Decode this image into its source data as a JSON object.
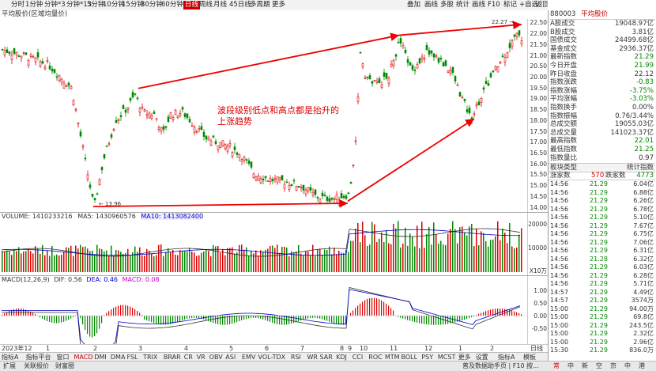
{
  "toolbar": {
    "items": [
      "分时",
      "1分钟",
      "分钟*3",
      "分钟*13",
      "5分钟",
      "10分钟",
      "15分钟",
      "30分钟",
      "60分钟",
      "日线",
      "周线",
      "月线",
      "45日线",
      "多周期",
      "更多"
    ],
    "active_index": 9,
    "right_items": [
      "叠加",
      "画线",
      "多股",
      "统计",
      "画线",
      "F10",
      "标记",
      "+自选",
      "返回"
    ]
  },
  "subtitle": "平均股价(区域均量价)",
  "annotation": {
    "line1": "波段级别低点和高点都是抬升的",
    "line2": "上涨趋势"
  },
  "price_axis": [
    "22.50",
    "22.00",
    "21.50",
    "21.00",
    "20.50",
    "20.00",
    "19.50",
    "19.00",
    "18.50",
    "18.00",
    "17.50",
    "17.00",
    "16.50",
    "16.00",
    "15.50",
    "15.00",
    "14.50",
    "14.00"
  ],
  "markers": {
    "low_label": "← 13.96",
    "high_label": "22.27 →"
  },
  "volume_legend": {
    "name": "VOLUME: 1410233216",
    "ma5": "MA5: 1430960576",
    "ma10": "MA10: 1413082400"
  },
  "volume_axis": [
    "20000",
    "10000",
    "X10万"
  ],
  "macd_legend": {
    "name": "MACD(12,26,9)",
    "dif": "DIF: 0.56",
    "dea": "DEA: 0.46",
    "macd": "MACD: 0.08"
  },
  "macd_axis": [
    "1.00",
    "0.50",
    "0.00",
    "-0.50"
  ],
  "dates": [
    "2023年12",
    "1",
    "2",
    "3",
    "4",
    "5",
    "6",
    "7",
    "8",
    "9",
    "10",
    "11",
    "12",
    "1",
    "2",
    "日线"
  ],
  "bottom_tabs": [
    "指标A",
    "指标平台",
    "窗口",
    "MACD",
    "DMI",
    "DMA",
    "FSL",
    "TRIX",
    "BRAR",
    "CR",
    "VR",
    "OBV",
    "ASI",
    "EMV",
    "VOL-TDX",
    "RSI",
    "WR",
    "SAR",
    "KDJ",
    "CCI",
    "ROC",
    "MTM",
    "BOLL",
    "PSY",
    "MCST",
    "更多",
    "设置"
  ],
  "bottom_tabs_active": 3,
  "bottom_right": [
    "指标A",
    "模板"
  ],
  "statusbar": {
    "left": [
      "扩展",
      "关联报价",
      "财富圈"
    ],
    "center": "普及数据助手页 | F10 按...",
    "right": [
      "常",
      "中",
      "新",
      "空",
      "京",
      "中",
      "港"
    ]
  },
  "right_panel": {
    "code": "880003",
    "name": "平均股价",
    "rows": [
      {
        "label": "A股成交",
        "value": "19048.97亿",
        "color": "#333"
      },
      {
        "label": "B股成交",
        "value": "3.81亿",
        "color": "#333"
      },
      {
        "label": "国债成交",
        "value": "24499.68亿",
        "color": "#333"
      },
      {
        "label": "基金成交",
        "value": "2936.37亿",
        "color": "#333"
      },
      {
        "label": "最新指数",
        "value": "21.29",
        "color": "#080"
      },
      {
        "label": "今日开盘",
        "value": "21.99",
        "color": "#080"
      },
      {
        "label": "昨日收盘",
        "value": "22.12",
        "color": "#333"
      },
      {
        "label": "指数涨跌",
        "value": "-0.83",
        "color": "#080"
      },
      {
        "label": "指数涨幅",
        "value": "-3.75%",
        "color": "#080"
      },
      {
        "label": "平均涨幅",
        "value": "-3.03%",
        "color": "#080"
      },
      {
        "label": "指数换手",
        "value": "0.00%",
        "color": "#333"
      },
      {
        "label": "指数振幅",
        "value": "0.76/3.44%",
        "color": "#333"
      },
      {
        "label": "总成交额",
        "value": "19055.03亿",
        "color": "#333"
      },
      {
        "label": "总成交量",
        "value": "141023.37亿",
        "color": "#333"
      },
      {
        "label": "最高指数",
        "value": "22.01",
        "color": "#080"
      },
      {
        "label": "最低指数",
        "value": "21.25",
        "color": "#080"
      },
      {
        "label": "指数量比",
        "value": "0.97",
        "color": "#333"
      }
    ],
    "tabs": {
      "left": "板块类型",
      "right": "统计指数"
    },
    "updown": {
      "label1": "涨家数",
      "v1": "570",
      "label2": "跌家数",
      "v2": "4773"
    },
    "ticks": [
      {
        "t": "14:56",
        "p": "21.29",
        "v": "6.04亿"
      },
      {
        "t": "14:56",
        "p": "21.29",
        "v": "6.88亿"
      },
      {
        "t": "14:56",
        "p": "21.29",
        "v": "6.26亿"
      },
      {
        "t": "14:56",
        "p": "21.29",
        "v": "6.78亿"
      },
      {
        "t": "14:56",
        "p": "21.29",
        "v": "5.10亿"
      },
      {
        "t": "14:56",
        "p": "21.29",
        "v": "7.67亿"
      },
      {
        "t": "14:56",
        "p": "21.29",
        "v": "6.75亿"
      },
      {
        "t": "14:56",
        "p": "21.29",
        "v": "7.06亿"
      },
      {
        "t": "14:56",
        "p": "21.29",
        "v": "6.31亿"
      },
      {
        "t": "14:56",
        "p": "21.28",
        "v": "6.32亿"
      },
      {
        "t": "14:56",
        "p": "21.29",
        "v": "6.03亿"
      },
      {
        "t": "14:56",
        "p": "21.29",
        "v": "6.28亿"
      },
      {
        "t": "14:56",
        "p": "21.29",
        "v": "5.71亿"
      },
      {
        "t": "14:57",
        "p": "21.29",
        "v": "4.49亿"
      },
      {
        "t": "14:57",
        "p": "21.29",
        "v": "3574万"
      },
      {
        "t": "15:00",
        "p": "21.29",
        "v": "94.00万"
      },
      {
        "t": "15:00",
        "p": "21.29",
        "v": "69.8亿"
      },
      {
        "t": "15:00",
        "p": "21.29",
        "v": "243.5亿"
      },
      {
        "t": "15:00",
        "p": "21.29",
        "v": "2.32亿"
      },
      {
        "t": "15:00",
        "p": "21.29",
        "v": "2.96亿"
      },
      {
        "t": "15:30",
        "p": "21.29",
        "v": "836.0万"
      }
    ]
  },
  "colors": {
    "up": "#d00",
    "down": "#080",
    "accent": "#c00"
  }
}
